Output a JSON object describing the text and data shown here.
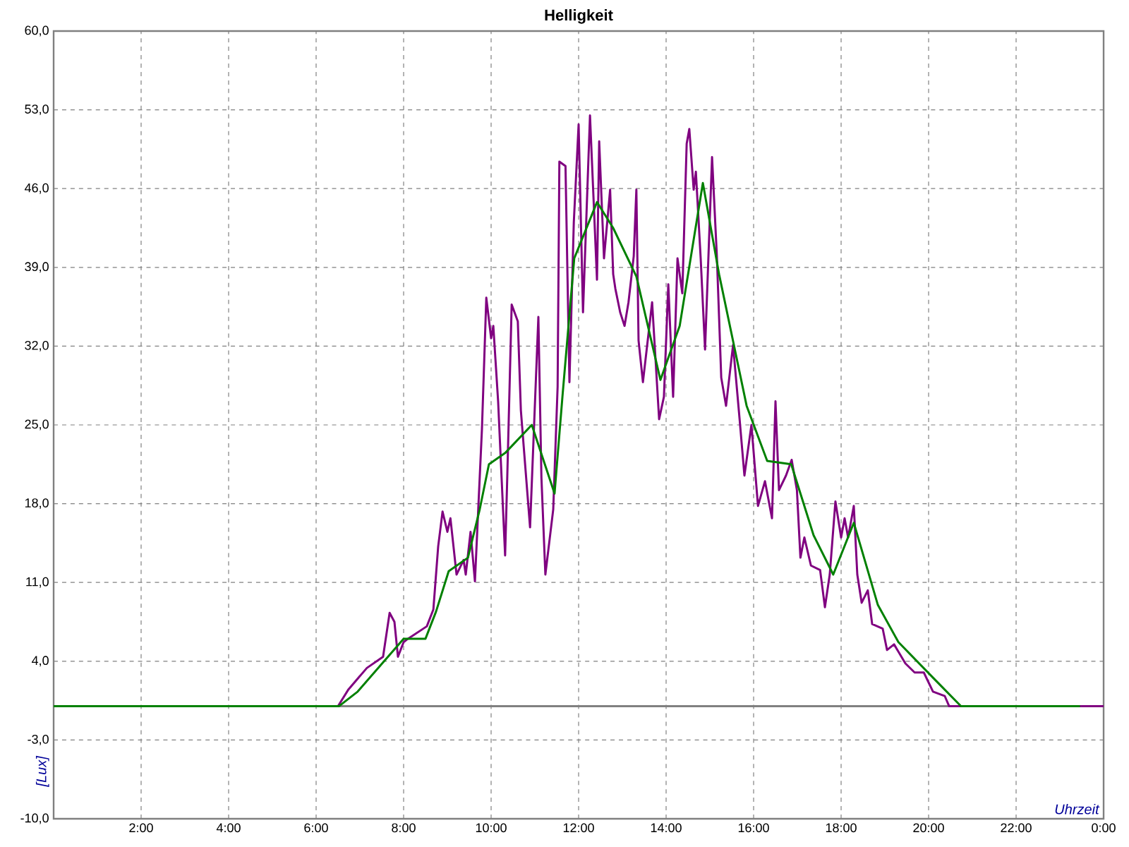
{
  "chart_data": {
    "type": "line",
    "title": "Helligkeit",
    "xlabel": "Uhrzeit",
    "ylabel": "[Lux]",
    "xlim": [
      0,
      24
    ],
    "ylim": [
      -10,
      60
    ],
    "xticks": [
      {
        "value": 0,
        "label": null
      },
      {
        "value": 2,
        "label": "2:00"
      },
      {
        "value": 4,
        "label": "4:00"
      },
      {
        "value": 6,
        "label": "6:00"
      },
      {
        "value": 8,
        "label": "8:00"
      },
      {
        "value": 10,
        "label": "10:00"
      },
      {
        "value": 12,
        "label": "12:00"
      },
      {
        "value": 14,
        "label": "14:00"
      },
      {
        "value": 16,
        "label": "16:00"
      },
      {
        "value": 18,
        "label": "18:00"
      },
      {
        "value": 20,
        "label": "20:00"
      },
      {
        "value": 22,
        "label": "22:00"
      },
      {
        "value": 24,
        "label": "0:00"
      }
    ],
    "yticks": [
      {
        "value": -10,
        "label": "-10,0"
      },
      {
        "value": -3,
        "label": "-3,0"
      },
      {
        "value": 4,
        "label": "4,0"
      },
      {
        "value": 11,
        "label": "11,0"
      },
      {
        "value": 18,
        "label": "18,0"
      },
      {
        "value": 25,
        "label": "25,0"
      },
      {
        "value": 32,
        "label": "32,0"
      },
      {
        "value": 39,
        "label": "39,0"
      },
      {
        "value": 46,
        "label": "46,0"
      },
      {
        "value": 53,
        "label": "53,0"
      },
      {
        "value": 60,
        "label": "60,0"
      }
    ],
    "grid": true,
    "ref_lines": [
      {
        "axis": "y",
        "value": 0,
        "color": "#808080"
      }
    ],
    "series": [
      {
        "color": "#800080",
        "x": [
          0,
          6.5,
          6.74,
          7.16,
          7.53,
          7.68,
          7.79,
          7.87,
          8.0,
          8.1,
          8.53,
          8.68,
          8.79,
          8.89,
          9.0,
          9.07,
          9.21,
          9.37,
          9.42,
          9.53,
          9.63,
          9.79,
          9.89,
          10.0,
          10.05,
          10.16,
          10.32,
          10.37,
          10.47,
          10.61,
          10.68,
          10.89,
          11.08,
          11.15,
          11.24,
          11.42,
          11.52,
          11.56,
          11.7,
          11.79,
          11.89,
          12.0,
          12.1,
          12.26,
          12.42,
          12.47,
          12.58,
          12.72,
          12.79,
          12.84,
          12.95,
          13.05,
          13.14,
          13.26,
          13.32,
          13.37,
          13.47,
          13.68,
          13.84,
          13.95,
          14.05,
          14.16,
          14.26,
          14.37,
          14.47,
          14.53,
          14.63,
          14.68,
          14.79,
          14.89,
          15.05,
          15.16,
          15.26,
          15.37,
          15.53,
          15.68,
          15.79,
          15.95,
          16.1,
          16.26,
          16.42,
          16.5,
          16.58,
          16.74,
          16.87,
          16.99,
          17.07,
          17.16,
          17.31,
          17.52,
          17.63,
          17.74,
          17.87,
          18.0,
          18.08,
          18.16,
          18.29,
          18.37,
          18.47,
          18.61,
          18.71,
          18.95,
          19.05,
          19.21,
          19.47,
          19.68,
          19.89,
          20.1,
          20.37,
          20.47,
          24
        ],
        "values": [
          0,
          0,
          1.5,
          3.4,
          4.4,
          8.3,
          7.5,
          4.4,
          5.7,
          6.0,
          7.1,
          8.6,
          14.2,
          17.3,
          15.5,
          16.7,
          11.7,
          13.0,
          11.7,
          15.5,
          11.1,
          24.6,
          36.3,
          32.7,
          33.8,
          27.1,
          13.4,
          20.5,
          35.7,
          34.2,
          26.3,
          15.9,
          34.6,
          20.3,
          11.7,
          17.5,
          28.4,
          48.4,
          48.0,
          28.8,
          43.0,
          51.7,
          35.0,
          52.5,
          37.9,
          50.2,
          39.8,
          45.9,
          38.4,
          37.1,
          35.0,
          33.8,
          35.9,
          40.0,
          45.9,
          32.5,
          28.8,
          35.9,
          25.5,
          27.5,
          37.5,
          27.5,
          39.8,
          36.7,
          50.0,
          51.3,
          45.9,
          47.5,
          39.8,
          31.7,
          48.8,
          40.0,
          29.2,
          26.7,
          32.1,
          25.5,
          20.5,
          25.0,
          17.8,
          20.0,
          16.7,
          27.1,
          19.2,
          20.5,
          21.9,
          19.2,
          13.2,
          15.0,
          12.5,
          12.1,
          8.8,
          11.7,
          18.2,
          15.0,
          16.7,
          15.0,
          17.8,
          11.7,
          9.2,
          10.3,
          7.3,
          6.9,
          5.0,
          5.5,
          3.8,
          3.0,
          3.0,
          1.3,
          0.9,
          0,
          0
        ]
      },
      {
        "color": "#008000",
        "x": [
          0,
          6.52,
          6.95,
          8.0,
          8.5,
          8.74,
          9.03,
          9.47,
          9.74,
          9.95,
          10.32,
          10.93,
          11.45,
          11.63,
          11.9,
          12.42,
          12.79,
          13.32,
          13.87,
          14.31,
          14.84,
          15.21,
          15.84,
          16.31,
          16.86,
          17.37,
          17.82,
          18.29,
          18.84,
          19.31,
          20.16,
          20.74,
          23.46
        ],
        "values": [
          0,
          0,
          1.3,
          6.0,
          6.0,
          8.4,
          12.0,
          13.2,
          17.5,
          21.5,
          22.5,
          25.0,
          18.9,
          27.5,
          39.8,
          44.8,
          42.5,
          38.2,
          29.0,
          33.8,
          46.5,
          38.4,
          26.7,
          21.8,
          21.5,
          15.2,
          11.7,
          16.3,
          9.0,
          5.7,
          2.3,
          0,
          0
        ]
      }
    ]
  }
}
